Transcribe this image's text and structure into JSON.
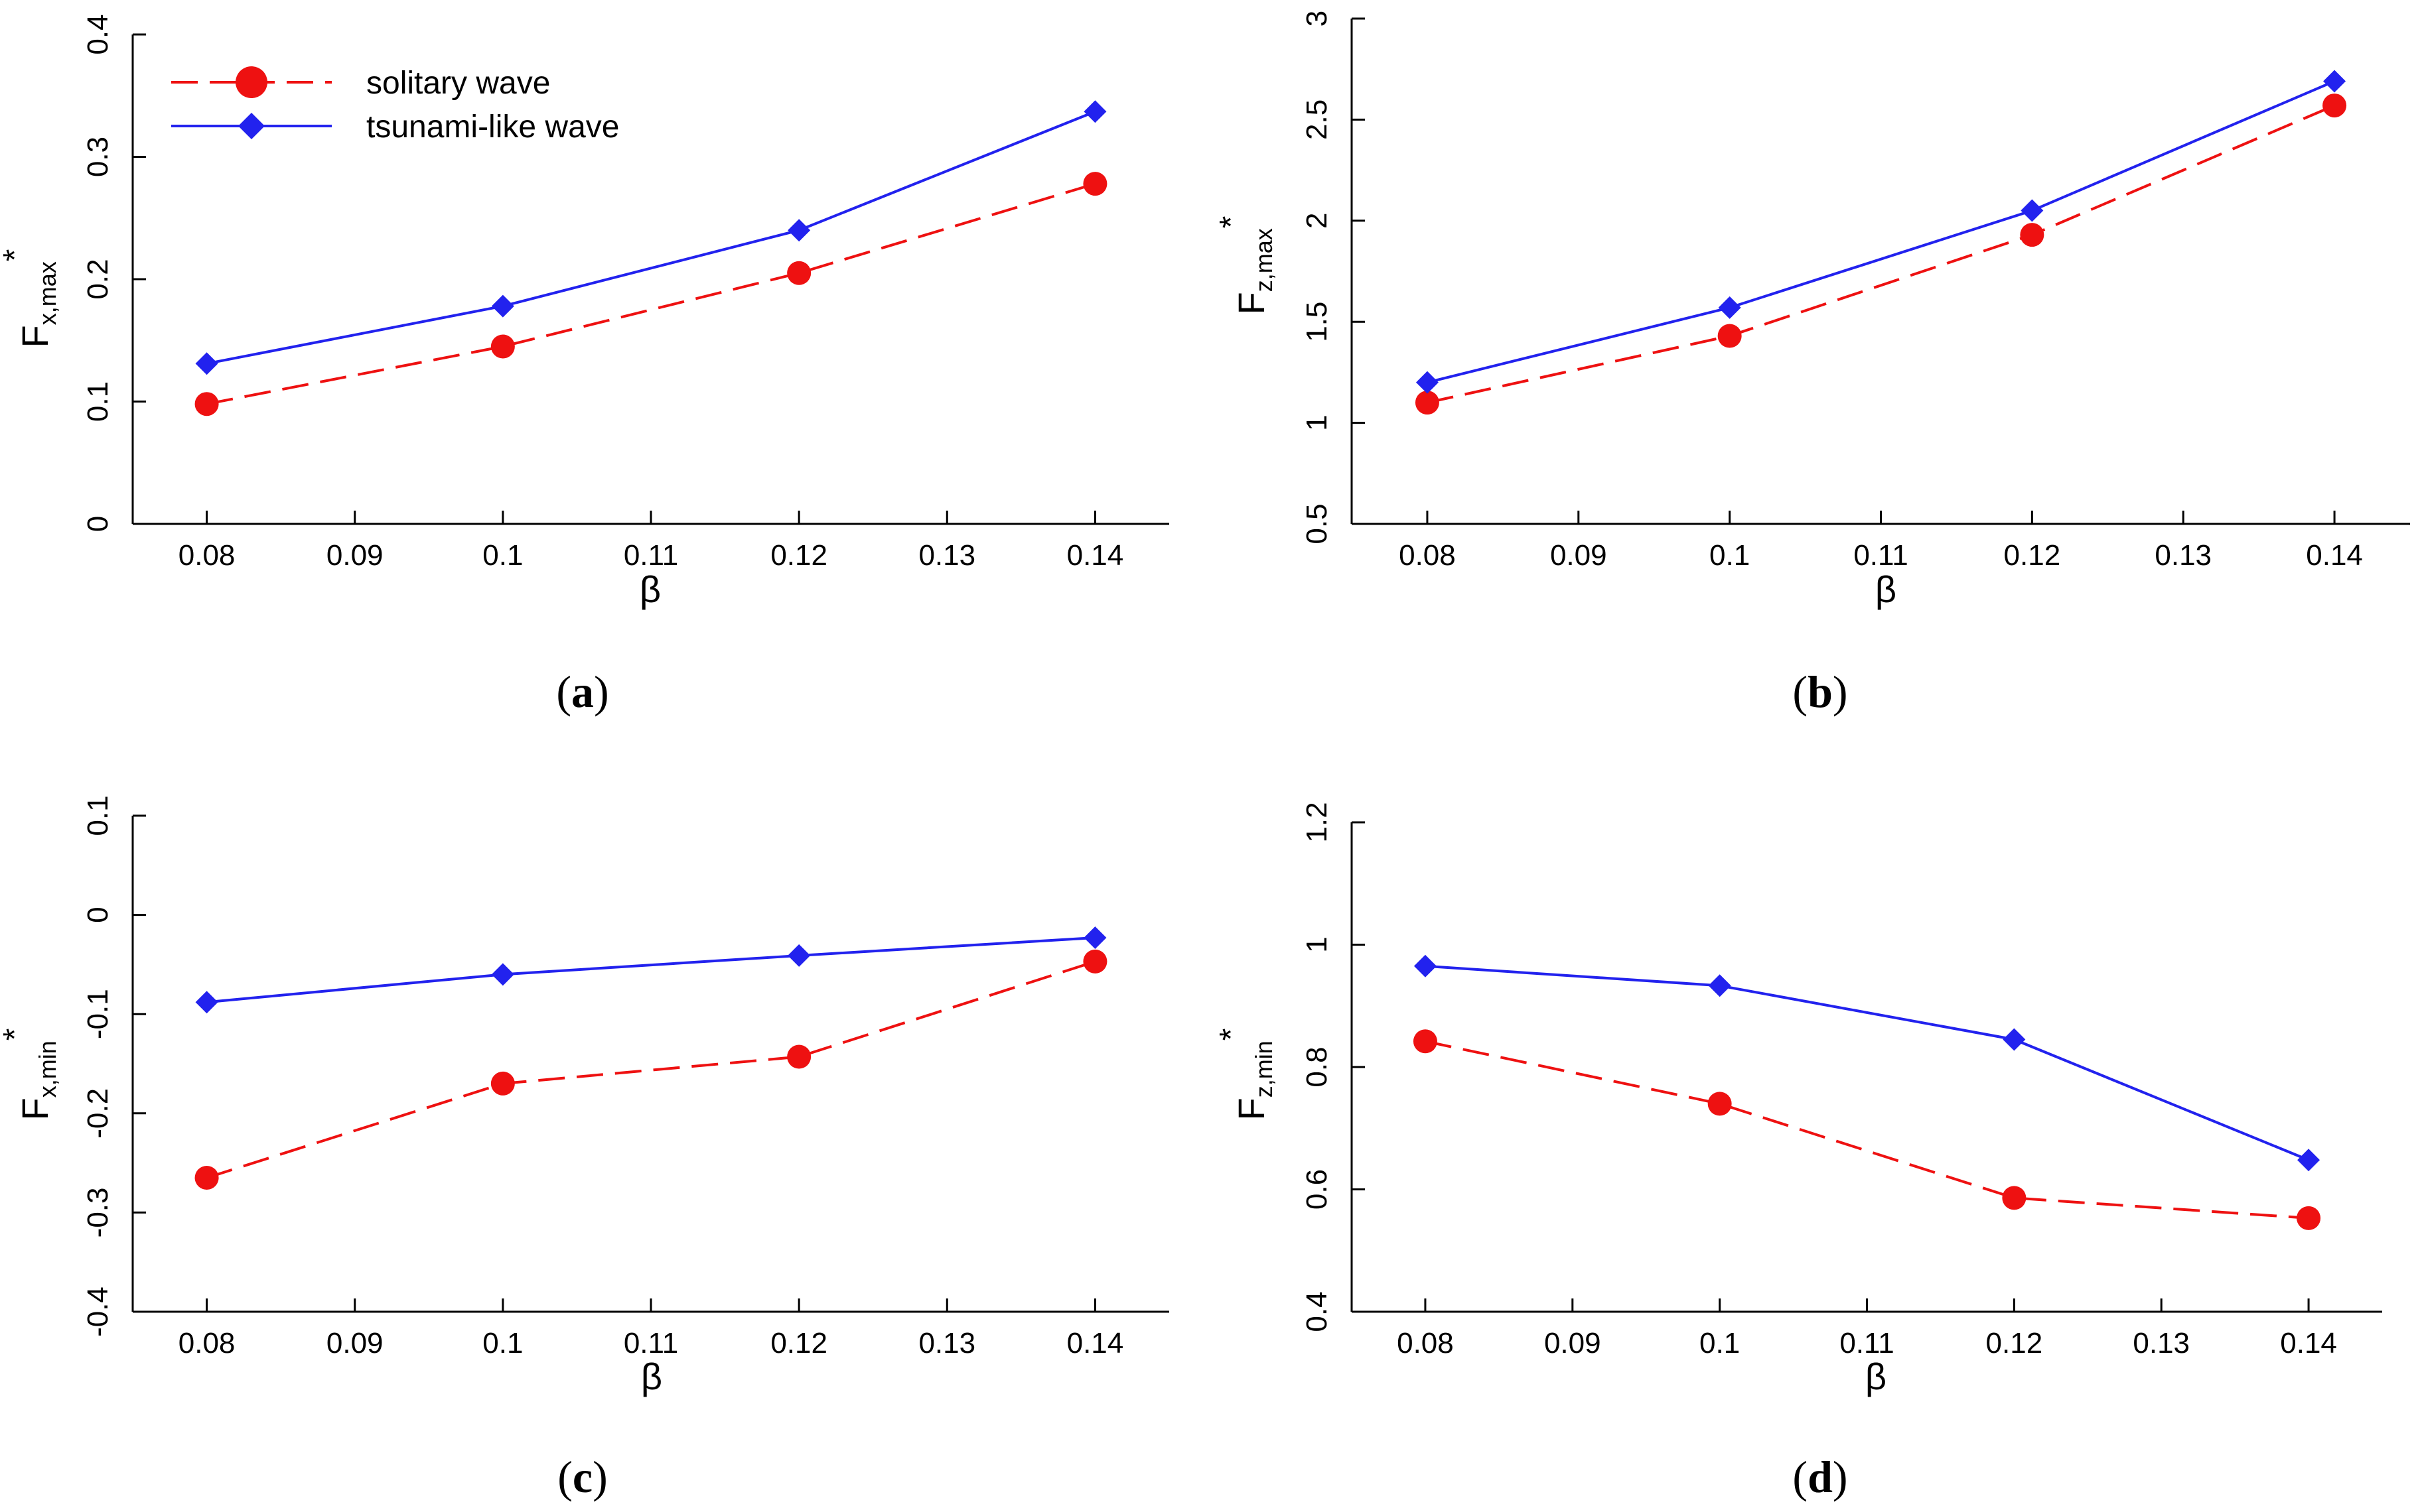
{
  "colors": {
    "solitary": "#ee1111",
    "tsunami": "#2222ee",
    "axis": "#000000"
  },
  "legend": {
    "series": [
      "solitary wave",
      "tsunami-like wave"
    ]
  },
  "chart_data": [
    {
      "type": "line",
      "panel_label": "a",
      "title": "",
      "xlabel": "β",
      "ylabel_main": "F",
      "ylabel_sub": "x,max",
      "ylabel_sup": "*",
      "xlim": [
        0.075,
        0.145
      ],
      "ylim": [
        0,
        0.4
      ],
      "xticks": [
        0.08,
        0.09,
        0.1,
        0.11,
        0.12,
        0.13,
        0.14
      ],
      "xtick_labels": [
        "0.08",
        "0.09",
        "0.1",
        "0.11",
        "0.12",
        "0.13",
        "0.14"
      ],
      "yticks": [
        0,
        0.1,
        0.2,
        0.3,
        0.4
      ],
      "ytick_labels": [
        "0",
        "0.1",
        "0.2",
        "0.3",
        "0.4"
      ],
      "x": [
        0.08,
        0.1,
        0.12,
        0.14
      ],
      "series": [
        {
          "name": "solitary wave",
          "values": [
            0.098,
            0.145,
            0.205,
            0.278
          ]
        },
        {
          "name": "tsunami-like wave",
          "values": [
            0.131,
            0.178,
            0.24,
            0.337
          ]
        }
      ],
      "grid": false,
      "legend_position": "top-left"
    },
    {
      "type": "line",
      "panel_label": "b",
      "title": "",
      "xlabel": "β",
      "ylabel_main": "F",
      "ylabel_sub": "z,max",
      "ylabel_sup": "*",
      "xlim": [
        0.075,
        0.145
      ],
      "ylim": [
        0.5,
        3
      ],
      "xticks": [
        0.08,
        0.09,
        0.1,
        0.11,
        0.12,
        0.13,
        0.14
      ],
      "xtick_labels": [
        "0.08",
        "0.09",
        "0.1",
        "0.11",
        "0.12",
        "0.13",
        "0.14"
      ],
      "yticks": [
        0.5,
        1,
        1.5,
        2,
        2.5,
        3
      ],
      "ytick_labels": [
        "0.5",
        "1",
        "1.5",
        "2",
        "2.5",
        "3"
      ],
      "x": [
        0.08,
        0.1,
        0.12,
        0.14
      ],
      "series": [
        {
          "name": "solitary wave",
          "values": [
            1.1,
            1.43,
            1.93,
            2.57
          ]
        },
        {
          "name": "tsunami-like wave",
          "values": [
            1.2,
            1.57,
            2.05,
            2.69
          ]
        }
      ],
      "grid": false,
      "legend_position": "none"
    },
    {
      "type": "line",
      "panel_label": "c",
      "title": "",
      "xlabel": "β",
      "ylabel_main": "F",
      "ylabel_sub": "x,min",
      "ylabel_sup": "*",
      "xlim": [
        0.075,
        0.145
      ],
      "ylim": [
        -0.4,
        0.1
      ],
      "xticks": [
        0.08,
        0.09,
        0.1,
        0.11,
        0.12,
        0.13,
        0.14
      ],
      "xtick_labels": [
        "0.08",
        "0.09",
        "0.1",
        "0.11",
        "0.12",
        "0.13",
        "0.14"
      ],
      "yticks": [
        -0.4,
        -0.3,
        -0.2,
        -0.1,
        0,
        0.1
      ],
      "ytick_labels": [
        "-0.4",
        "-0.3",
        "-0.2",
        "-0.1",
        "0",
        "0.1"
      ],
      "x": [
        0.08,
        0.1,
        0.12,
        0.14
      ],
      "series": [
        {
          "name": "solitary wave",
          "values": [
            -0.265,
            -0.17,
            -0.143,
            -0.047
          ]
        },
        {
          "name": "tsunami-like wave",
          "values": [
            -0.088,
            -0.06,
            -0.041,
            -0.023
          ]
        }
      ],
      "grid": false,
      "legend_position": "none"
    },
    {
      "type": "line",
      "panel_label": "d",
      "title": "",
      "xlabel": "β",
      "ylabel_main": "F",
      "ylabel_sub": "z,min",
      "ylabel_sup": "*",
      "xlim": [
        0.075,
        0.145
      ],
      "ylim": [
        0.4,
        1.2
      ],
      "xticks": [
        0.08,
        0.09,
        0.1,
        0.11,
        0.12,
        0.13,
        0.14
      ],
      "xtick_labels": [
        "0.08",
        "0.09",
        "0.1",
        "0.11",
        "0.12",
        "0.13",
        "0.14"
      ],
      "yticks": [
        0.4,
        0.6,
        0.8,
        1,
        1.2
      ],
      "ytick_labels": [
        "0.4",
        "0.6",
        "0.8",
        "1",
        "1.2"
      ],
      "x": [
        0.08,
        0.1,
        0.12,
        0.14
      ],
      "series": [
        {
          "name": "solitary wave",
          "values": [
            0.842,
            0.74,
            0.586,
            0.553
          ]
        },
        {
          "name": "tsunami-like wave",
          "values": [
            0.965,
            0.933,
            0.845,
            0.648
          ]
        }
      ],
      "grid": false,
      "legend_position": "none"
    }
  ]
}
